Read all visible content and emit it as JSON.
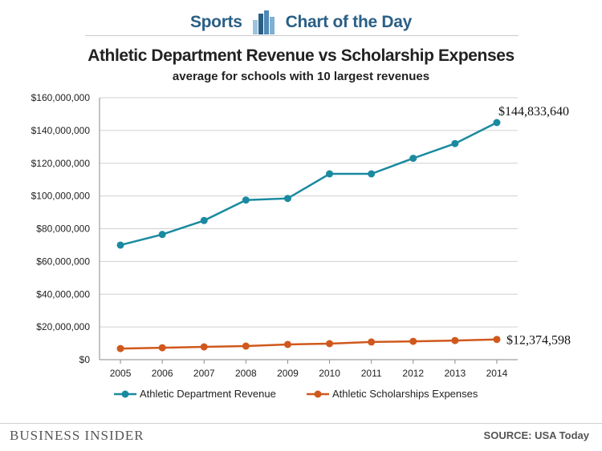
{
  "header": {
    "left_label": "Sports",
    "right_label": "Chart of the Day",
    "logo_icon": "bar-chart-icon"
  },
  "colors": {
    "revenue": "#1a8aa0",
    "scholarships": "#d0581c",
    "header_blue": "#2a5f86",
    "grid": "#d0d0d0"
  },
  "chart_data": {
    "type": "line",
    "title": "Athletic Department Revenue vs Scholarship Expenses",
    "subtitle": "average for schools with 10 largest revenues",
    "xlabel": "",
    "ylabel": "",
    "x": [
      "2005",
      "2006",
      "2007",
      "2008",
      "2009",
      "2010",
      "2011",
      "2012",
      "2013",
      "2014"
    ],
    "ylim": [
      0,
      160000000
    ],
    "yticks": [
      0,
      20000000,
      40000000,
      60000000,
      80000000,
      100000000,
      120000000,
      140000000,
      160000000
    ],
    "ytick_labels": [
      "$0",
      "$20,000,000",
      "$40,000,000",
      "$60,000,000",
      "$80,000,000",
      "$100,000,000",
      "$120,000,000",
      "$140,000,000",
      "$160,000,000"
    ],
    "grid": true,
    "legend_position": "bottom",
    "series": [
      {
        "name": "Athletic Department Revenue",
        "color_key": "revenue",
        "values": [
          70000000,
          76500000,
          85000000,
          97500000,
          98500000,
          113500000,
          113500000,
          123000000,
          132000000,
          144833640
        ],
        "end_label": "$144,833,640"
      },
      {
        "name": "Athletic Scholarships Expenses",
        "color_key": "scholarships",
        "values": [
          6800000,
          7300000,
          7800000,
          8300000,
          9300000,
          9800000,
          10800000,
          11200000,
          11700000,
          12374598
        ],
        "end_label": "$12,374,598"
      }
    ]
  },
  "footer": {
    "brand": "BUSINESS INSIDER",
    "source": "SOURCE: USA Today"
  }
}
